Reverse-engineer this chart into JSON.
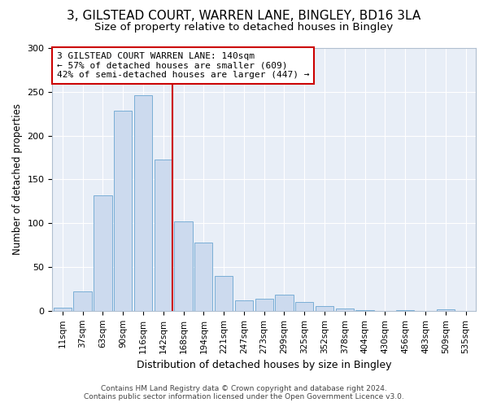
{
  "title_line1": "3, GILSTEAD COURT, WARREN LANE, BINGLEY, BD16 3LA",
  "title_line2": "Size of property relative to detached houses in Bingley",
  "xlabel": "Distribution of detached houses by size in Bingley",
  "ylabel": "Number of detached properties",
  "bar_labels": [
    "11sqm",
    "37sqm",
    "63sqm",
    "90sqm",
    "116sqm",
    "142sqm",
    "168sqm",
    "194sqm",
    "221sqm",
    "247sqm",
    "273sqm",
    "299sqm",
    "325sqm",
    "352sqm",
    "378sqm",
    "404sqm",
    "430sqm",
    "456sqm",
    "483sqm",
    "509sqm",
    "535sqm"
  ],
  "bar_heights": [
    4,
    22,
    132,
    228,
    246,
    173,
    102,
    78,
    40,
    12,
    14,
    18,
    10,
    5,
    3,
    1,
    0,
    1,
    0,
    2,
    0
  ],
  "bar_color": "#ccdaee",
  "bar_edge_color": "#7aaed6",
  "vline_index": 5,
  "vline_color": "#cc0000",
  "annotation_text": "3 GILSTEAD COURT WARREN LANE: 140sqm\n← 57% of detached houses are smaller (609)\n42% of semi-detached houses are larger (447) →",
  "annotation_box_color": "#ffffff",
  "annotation_box_edge": "#cc0000",
  "ylim": [
    0,
    300
  ],
  "yticks": [
    0,
    50,
    100,
    150,
    200,
    250,
    300
  ],
  "background_color": "#e8eef7",
  "footer_line1": "Contains HM Land Registry data © Crown copyright and database right 2024.",
  "footer_line2": "Contains public sector information licensed under the Open Government Licence v3.0."
}
